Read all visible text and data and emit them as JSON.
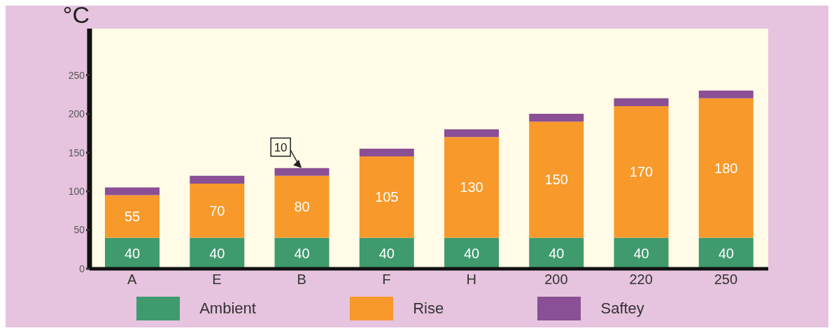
{
  "chart_data": {
    "type": "bar",
    "stacked": true,
    "ylabel": "°C",
    "categories": [
      "A",
      "E",
      "B",
      "F",
      "H",
      "200",
      "220",
      "250"
    ],
    "series": [
      {
        "name": "Ambient",
        "color": "#3f9a6e",
        "values": [
          40,
          40,
          40,
          40,
          40,
          40,
          40,
          40
        ],
        "value_labels": [
          "40",
          "40",
          "40",
          "40",
          "40",
          "40",
          "40",
          "40"
        ]
      },
      {
        "name": "Rise",
        "color": "#f7992b",
        "values": [
          55,
          70,
          80,
          105,
          130,
          150,
          170,
          180
        ],
        "value_labels": [
          "55",
          "70",
          "80",
          "105",
          "130",
          "150",
          "170",
          "180"
        ]
      },
      {
        "name": "Saftey",
        "color": "#8a4f94",
        "values": [
          10,
          10,
          10,
          10,
          10,
          10,
          10,
          10
        ]
      }
    ],
    "ylim": [
      0,
      310
    ],
    "yticks": [
      0,
      50,
      100,
      150,
      200,
      250
    ],
    "legend": "bottom",
    "annotations": [
      {
        "text": "10",
        "x": "B",
        "y": 130
      }
    ]
  }
}
